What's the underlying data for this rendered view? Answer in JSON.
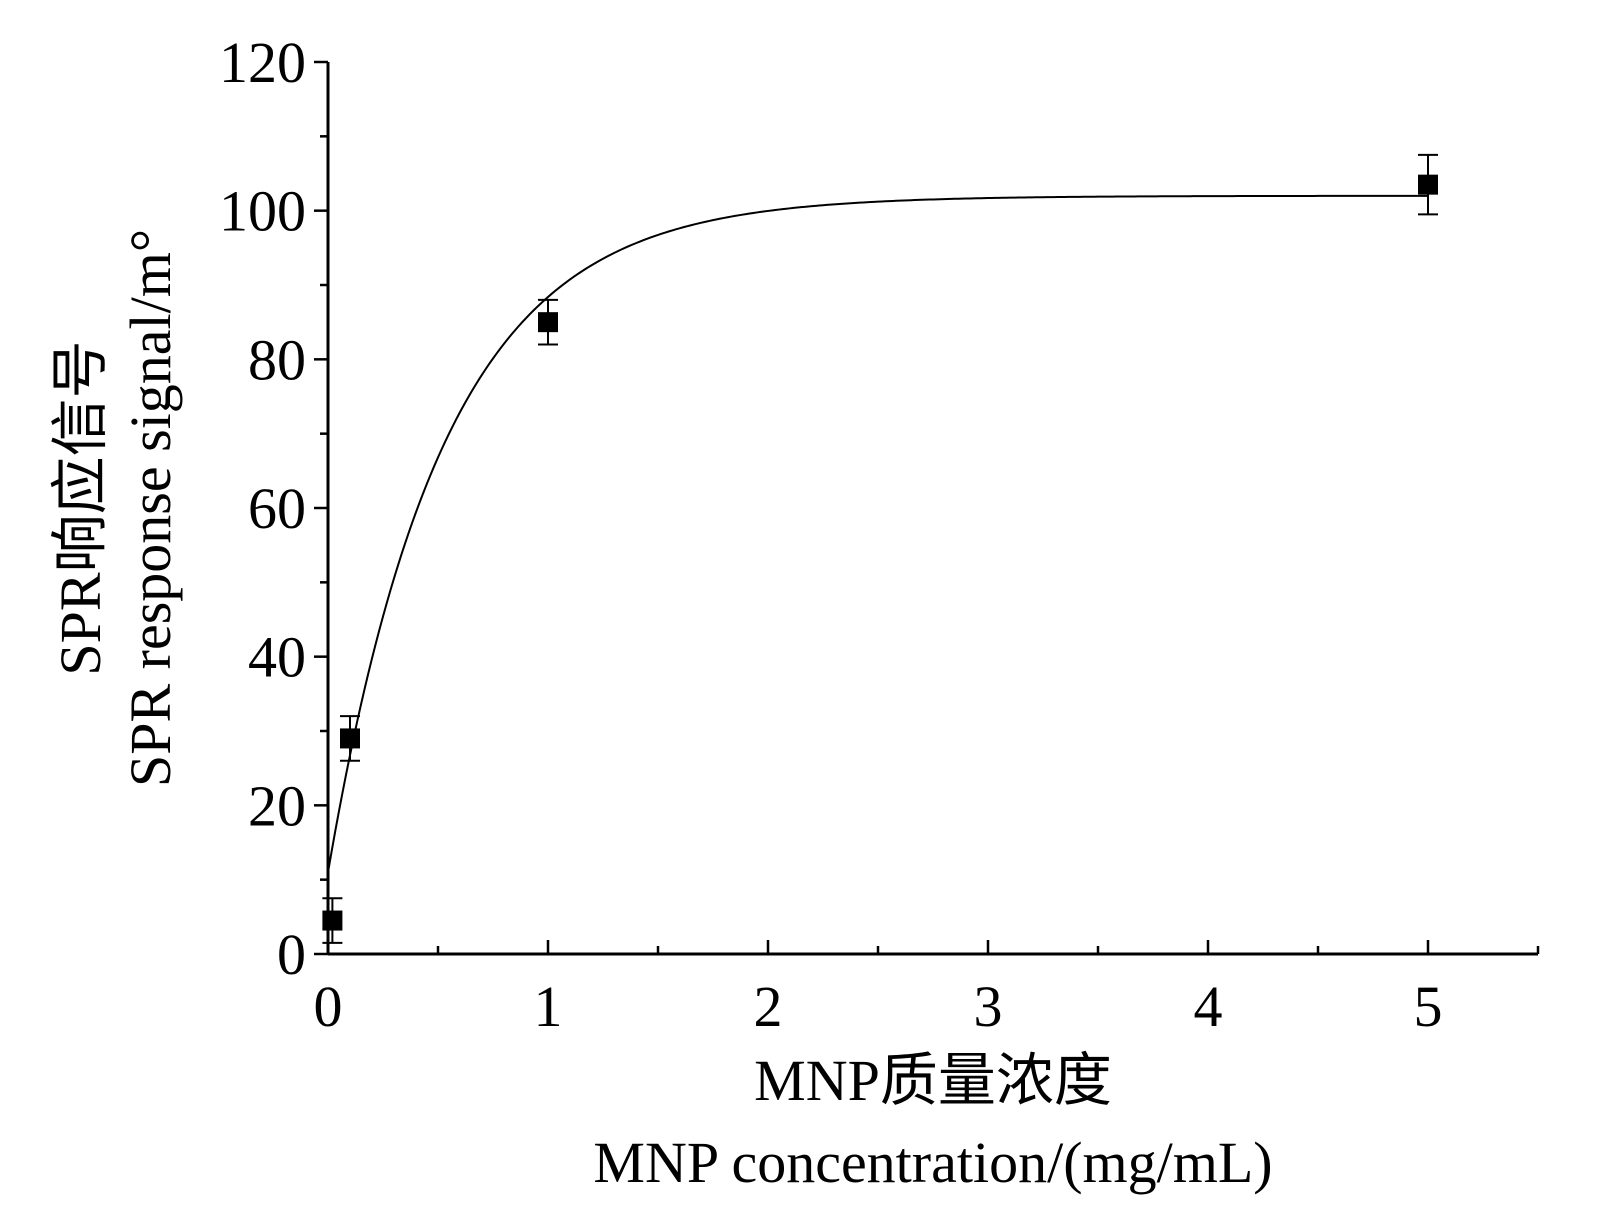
{
  "chart_data": {
    "type": "scatter",
    "xlabel_line1": "MNP质量浓度",
    "xlabel_line2": "MNP concentration/(mg/mL)",
    "ylabel_line1": "SPR响应信号",
    "ylabel_line2": "SPR response signal/m°",
    "xlim": [
      0,
      5.5
    ],
    "ylim": [
      0,
      120
    ],
    "x_ticks": [
      0,
      1,
      2,
      3,
      4,
      5
    ],
    "y_ticks": [
      0,
      20,
      40,
      60,
      80,
      100,
      120
    ],
    "x_minor_ticks": [
      0.5,
      1.5,
      2.5,
      3.5,
      4.5,
      5.5
    ],
    "y_minor_ticks": [
      10,
      30,
      50,
      70,
      90,
      110
    ],
    "series": [
      {
        "points": [
          {
            "x": 0.02,
            "y": 4.5,
            "err": 3.0
          },
          {
            "x": 0.1,
            "y": 29,
            "err": 3.0
          },
          {
            "x": 1.0,
            "y": 85,
            "err": 3.0
          },
          {
            "x": 5.0,
            "y": 103.5,
            "err": 4.0
          }
        ],
        "marker": "square",
        "color": "#000000"
      }
    ],
    "fit_curve": {
      "model": "exponential",
      "y0": 11,
      "ymax": 102,
      "rate": 1.9
    },
    "grid": false,
    "legend": "none"
  }
}
